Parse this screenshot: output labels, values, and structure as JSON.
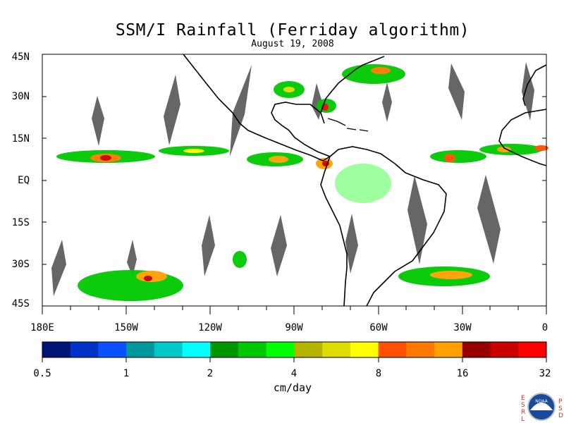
{
  "title": "SSM/I Rainfall (Ferriday algorithm)",
  "date": "August 19, 2008",
  "lat_labels": [
    "45N",
    "30N",
    "15N",
    "EQ",
    "15S",
    "30S",
    "45S"
  ],
  "lon_labels": [
    "180E",
    "150W",
    "120W",
    "90W",
    "60W",
    "30W",
    "0"
  ],
  "colorbar": {
    "unit": "cm/day",
    "tick_labels": [
      "0.5",
      "1",
      "2",
      "4",
      "8",
      "16",
      "32"
    ],
    "colors": [
      "#001478",
      "#0032c8",
      "#0a50ff",
      "#00969b",
      "#00c8c8",
      "#00ffff",
      "#009600",
      "#00c800",
      "#00ff00",
      "#b4b400",
      "#dcdc00",
      "#ffff00",
      "#ff5000",
      "#ff7800",
      "#ffa000",
      "#960000",
      "#c80000",
      "#ff0000"
    ]
  },
  "map": {
    "lat_range": [
      -45,
      45
    ],
    "lon_range": [
      -180,
      0
    ],
    "no_data_color": "#666666",
    "ocean_color": "#ffffff",
    "coastline_color": "#000000"
  },
  "logo": {
    "left_letters": [
      "E",
      "S",
      "R",
      "L"
    ],
    "center_text": "NOAA",
    "right_letters": [
      "P",
      "S",
      "D"
    ]
  }
}
